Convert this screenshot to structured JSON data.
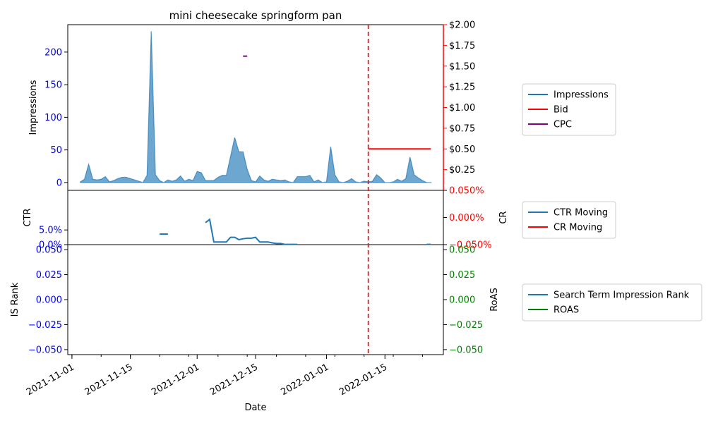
{
  "chart_data": [
    {
      "type": "area",
      "panel": "impressions",
      "title": "mini cheesecake springform pan",
      "xlabel": "Date",
      "ylabel_left": "Impressions",
      "ylabel_right": "",
      "x_tick_labels": [
        "2021-11-01",
        "2021-11-15",
        "2021-12-01",
        "2021-12-15",
        "2022-01-01",
        "2022-01-15"
      ],
      "x_tick_dates": [
        "2021-11-01",
        "2021-11-15",
        "2021-12-01",
        "2021-12-15",
        "2022-01-01",
        "2022-01-15"
      ],
      "xlim": [
        "2021-10-31",
        "2022-01-29"
      ],
      "y_left_lim": [
        -12,
        242
      ],
      "y_left_ticks": [
        0,
        50,
        100,
        150,
        200
      ],
      "y_right_lim": [
        0.0,
        2.0
      ],
      "y_right_ticks": [
        "$0.25",
        "$0.50",
        "$0.75",
        "$1.00",
        "$1.25",
        "$1.50",
        "$1.75",
        "$2.00"
      ],
      "y_right_tick_values": [
        0.25,
        0.5,
        0.75,
        1.0,
        1.25,
        1.5,
        1.75,
        2.0
      ],
      "vertical_line_date": "2022-01-11",
      "series": [
        {
          "name": "Impressions",
          "axis": "left",
          "color": "#1f77b4",
          "x": [
            "2021-11-03",
            "2021-11-04",
            "2021-11-05",
            "2021-11-06",
            "2021-11-07",
            "2021-11-08",
            "2021-11-09",
            "2021-11-10",
            "2021-11-11",
            "2021-11-12",
            "2021-11-13",
            "2021-11-14",
            "2021-11-15",
            "2021-11-16",
            "2021-11-17",
            "2021-11-18",
            "2021-11-19",
            "2021-11-20",
            "2021-11-21",
            "2021-11-22",
            "2021-11-23",
            "2021-11-24",
            "2021-11-25",
            "2021-11-26",
            "2021-11-27",
            "2021-11-28",
            "2021-11-29",
            "2021-11-30",
            "2021-12-01",
            "2021-12-02",
            "2021-12-03",
            "2021-12-04",
            "2021-12-05",
            "2021-12-06",
            "2021-12-07",
            "2021-12-08",
            "2021-12-09",
            "2021-12-10",
            "2021-12-11",
            "2021-12-12",
            "2021-12-13",
            "2021-12-14",
            "2021-12-15",
            "2021-12-16",
            "2021-12-17",
            "2021-12-18",
            "2021-12-19",
            "2021-12-20",
            "2021-12-21",
            "2021-12-22",
            "2021-12-23",
            "2021-12-24",
            "2021-12-25",
            "2021-12-26",
            "2021-12-27",
            "2021-12-28",
            "2021-12-29",
            "2021-12-30",
            "2021-12-31",
            "2022-01-01",
            "2022-01-02",
            "2022-01-03",
            "2022-01-04",
            "2022-01-05",
            "2022-01-06",
            "2022-01-07",
            "2022-01-08",
            "2022-01-09",
            "2022-01-10",
            "2022-01-11",
            "2022-01-12",
            "2022-01-13",
            "2022-01-14",
            "2022-01-15",
            "2022-01-16",
            "2022-01-17",
            "2022-01-18",
            "2022-01-19",
            "2022-01-20",
            "2022-01-21",
            "2022-01-22",
            "2022-01-23",
            "2022-01-24",
            "2022-01-25",
            "2022-01-26"
          ],
          "values": [
            1,
            5,
            28,
            5,
            4,
            5,
            9,
            1,
            3,
            6,
            8,
            8,
            6,
            4,
            2,
            0,
            11,
            232,
            12,
            3,
            0,
            4,
            2,
            4,
            10,
            2,
            5,
            3,
            17,
            15,
            3,
            3,
            3,
            8,
            11,
            11,
            40,
            69,
            47,
            47,
            20,
            3,
            1,
            10,
            4,
            2,
            5,
            4,
            3,
            4,
            1,
            0,
            9,
            9,
            9,
            11,
            1,
            4,
            0,
            1,
            55,
            12,
            1,
            0,
            2,
            6,
            1,
            0,
            2,
            1,
            2,
            12,
            7,
            0,
            0,
            1,
            5,
            2,
            6,
            39,
            12,
            7,
            3,
            0,
            0
          ]
        },
        {
          "name": "Bid",
          "axis": "right",
          "color": "#ff0000",
          "x": [
            "2022-01-11",
            "2022-01-26"
          ],
          "values": [
            0.5,
            0.5
          ]
        },
        {
          "name": "CPC",
          "axis": "right",
          "color": "#800080",
          "x": [
            "2021-12-12",
            "2021-12-13"
          ],
          "values": [
            1.62,
            1.62
          ]
        }
      ],
      "legend": {
        "position": "right",
        "entries": [
          "Impressions",
          "Bid",
          "CPC"
        ]
      }
    },
    {
      "type": "line",
      "panel": "ctr",
      "ylabel_left": "CTR",
      "ylabel_right": "CR",
      "xlim": [
        "2021-10-31",
        "2022-01-29"
      ],
      "y_left_lim": [
        0.0,
        0.185
      ],
      "y_left_ticks": [
        "0.0%",
        "5.0%"
      ],
      "y_left_tick_values": [
        0.0,
        0.05
      ],
      "y_right_lim": [
        -0.05,
        0.05
      ],
      "y_right_ticks": [
        "−0.050%",
        "0.000%",
        "0.050%"
      ],
      "y_right_tick_values": [
        -0.05,
        0.0,
        0.05
      ],
      "series": [
        {
          "name": "CTR Moving",
          "axis": "left",
          "color": "#1f77b4",
          "segments": [
            {
              "x": [
                "2021-11-22",
                "2021-11-24"
              ],
              "values": [
                0.036,
                0.036
              ]
            },
            {
              "x": [
                "2021-12-03",
                "2021-12-04",
                "2021-12-05",
                "2021-12-06",
                "2021-12-07",
                "2021-12-08",
                "2021-12-09",
                "2021-12-10",
                "2021-12-11",
                "2021-12-12",
                "2021-12-13",
                "2021-12-14",
                "2021-12-15",
                "2021-12-16",
                "2021-12-17",
                "2021-12-18",
                "2021-12-19",
                "2021-12-20",
                "2021-12-21",
                "2021-12-22",
                "2021-12-23",
                "2021-12-24",
                "2021-12-25"
              ],
              "values": [
                0.075,
                0.086,
                0.009,
                0.009,
                0.009,
                0.009,
                0.025,
                0.025,
                0.017,
                0.02,
                0.022,
                0.022,
                0.025,
                0.009,
                0.009,
                0.009,
                0.006,
                0.004,
                0.004,
                0.001,
                0.001,
                0.001,
                0.001
              ]
            },
            {
              "x": [
                "2022-01-25",
                "2022-01-26"
              ],
              "values": [
                0.001,
                0.001
              ]
            }
          ]
        },
        {
          "name": "CR Moving",
          "axis": "right",
          "color": "#ff0000",
          "segments": []
        }
      ],
      "legend": {
        "position": "right",
        "entries": [
          "CTR Moving",
          "CR Moving"
        ]
      }
    },
    {
      "type": "line",
      "panel": "rank",
      "ylabel_left": "IS Rank",
      "ylabel_right": "RoAS",
      "xlim": [
        "2021-10-31",
        "2022-01-29"
      ],
      "y_left_lim": [
        -0.055,
        0.055
      ],
      "y_left_ticks": [
        "−0.050",
        "−0.025",
        "0.000",
        "0.025",
        "0.050"
      ],
      "y_left_tick_values": [
        -0.05,
        -0.025,
        0.0,
        0.025,
        0.05
      ],
      "y_right_lim": [
        -0.055,
        0.055
      ],
      "y_right_ticks": [
        "−0.050",
        "−0.025",
        "0.000",
        "0.025",
        "0.050"
      ],
      "y_right_tick_values": [
        -0.05,
        -0.025,
        0.0,
        0.025,
        0.05
      ],
      "series": [
        {
          "name": "Search Term Impression Rank",
          "axis": "left",
          "color": "#1f77b4",
          "values": []
        },
        {
          "name": "ROAS",
          "axis": "right",
          "color": "#008000",
          "values": []
        }
      ],
      "legend": {
        "position": "right",
        "entries": [
          "Search Term Impression Rank",
          "ROAS"
        ]
      }
    }
  ],
  "colors": {
    "left_axis": "#0000ff",
    "bid_axis": "#ff0000",
    "cr_axis": "#ff0000",
    "roas_axis": "#008000",
    "vline": "#ff0000"
  }
}
